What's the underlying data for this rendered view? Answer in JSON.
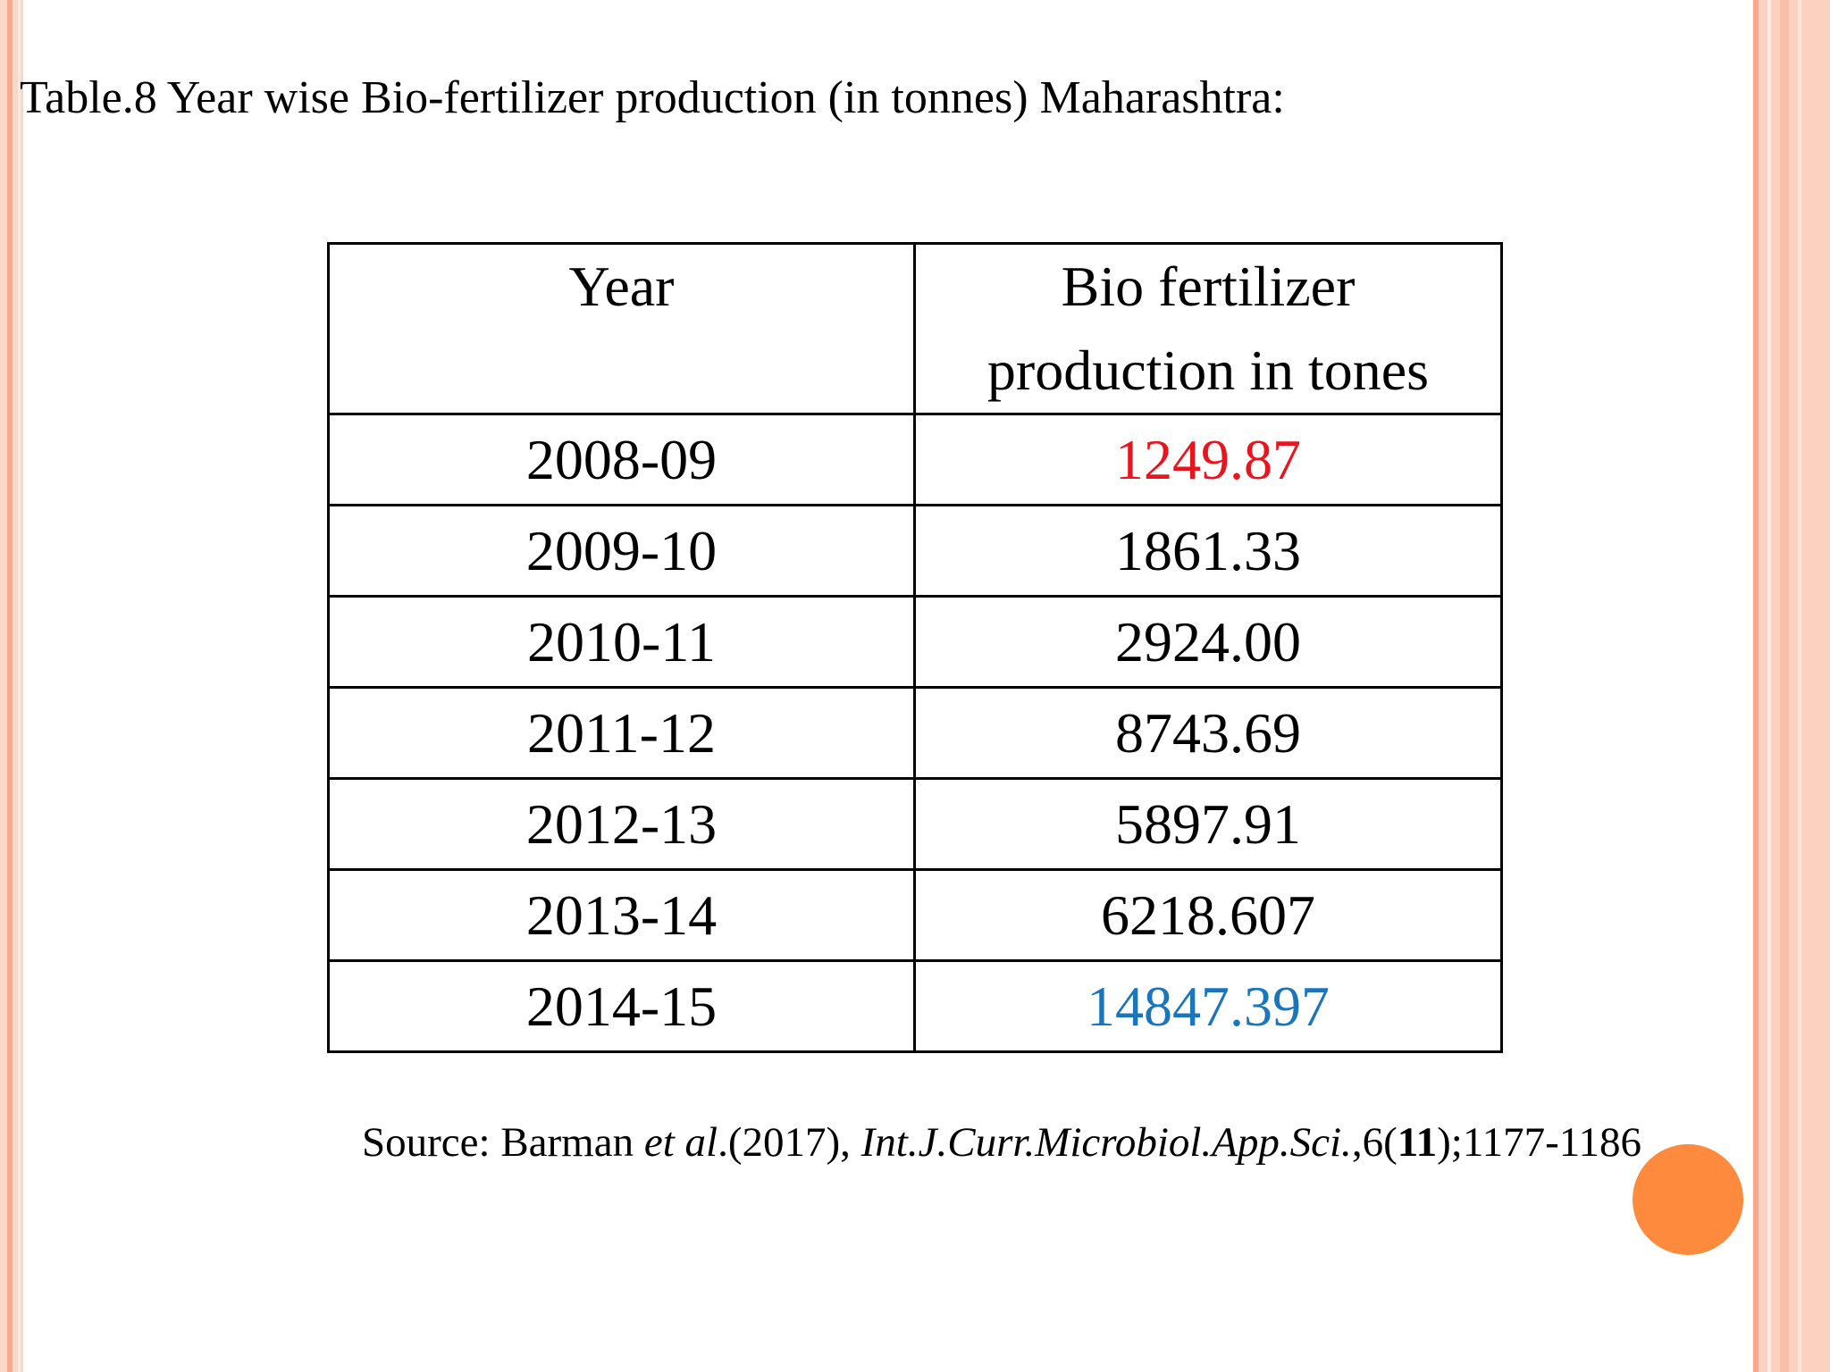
{
  "title": "Table.8  Year wise Bio-fertilizer production (in tonnes) Maharashtra:",
  "table": {
    "headers": [
      "Year",
      "Bio fertilizer production in tones"
    ],
    "rows": [
      {
        "year": "2008-09",
        "value": "1249.87",
        "color": "#e8141e"
      },
      {
        "year": "2009-10",
        "value": "1861.33",
        "color": "#000000"
      },
      {
        "year": "2010-11",
        "value": "2924.00",
        "color": "#000000"
      },
      {
        "year": "2011-12",
        "value": "8743.69",
        "color": "#000000"
      },
      {
        "year": "2012-13",
        "value": "5897.91",
        "color": "#000000"
      },
      {
        "year": "2013-14",
        "value": "6218.607",
        "color": "#000000"
      },
      {
        "year": "2014-15",
        "value": "14847.397",
        "color": "#1b75bb"
      }
    ]
  },
  "source": {
    "prefix": "Source: Barman ",
    "etal": "et al",
    "year": ".(2017), ",
    "journal": "Int.J.Curr.Microbiol.App.Sci.",
    "volume": ",6(",
    "issue": "11",
    "pages": ");1177-1186"
  },
  "colors": {
    "accent_orange": "#fd8a3d",
    "border_peach": "#fbd2c0",
    "highlight_red": "#e8141e",
    "highlight_blue": "#1b75bb"
  }
}
